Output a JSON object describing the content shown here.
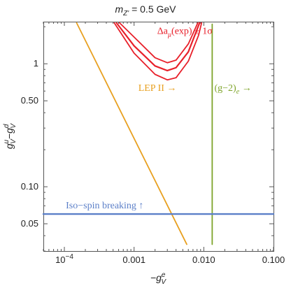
{
  "chart_data": {
    "type": "line",
    "title": "m_{Z'} = 0.5 GeV",
    "title_parts": {
      "base": "m",
      "sub": "Z'",
      "rest": " = 0.5 GeV"
    },
    "xlabel": "-g_V^e",
    "xlabel_parts": {
      "prefix": "−g",
      "sup": "e",
      "sub": "V"
    },
    "ylabel": "g_V^u - g_V^d",
    "ylabel_parts": {
      "g1": "g",
      "sup1": "u",
      "sub1": "V",
      "minus": "−g",
      "sup2": "d",
      "sub2": "V"
    },
    "xscale": "log",
    "yscale": "log",
    "xlim": [
      5e-05,
      0.1
    ],
    "ylim": [
      0.03,
      2.2
    ],
    "xticks": [
      {
        "value": 0.0001,
        "label": "10",
        "exp": "−4"
      },
      {
        "value": 0.001,
        "label": "0.001"
      },
      {
        "value": 0.01,
        "label": "0.010"
      },
      {
        "value": 0.1,
        "label": "0.100"
      }
    ],
    "yticks": [
      {
        "value": 0.05,
        "label": "0.05"
      },
      {
        "value": 0.1,
        "label": "0.10"
      },
      {
        "value": 0.5,
        "label": "0.50"
      },
      {
        "value": 1,
        "label": "1"
      }
    ],
    "series": [
      {
        "name": "LEP II",
        "color": "#e8a020",
        "points": [
          [
            0.00015,
            2.15
          ],
          [
            0.0057,
            0.034
          ]
        ]
      },
      {
        "name": "(g-2)_e",
        "color": "#7ea42a",
        "points": [
          [
            0.0132,
            2.1
          ],
          [
            0.0132,
            0.034
          ]
        ]
      },
      {
        "name": "Iso-spin breaking",
        "color": "#5b7fc8",
        "points": [
          [
            5e-05,
            0.06
          ],
          [
            0.1,
            0.06
          ]
        ]
      },
      {
        "name": "Δa_μ(exp) central",
        "color": "#e8202a",
        "points": [
          [
            0.00056,
            2.15
          ],
          [
            0.001,
            1.4
          ],
          [
            0.002,
            0.96
          ],
          [
            0.003,
            0.88
          ],
          [
            0.004,
            0.93
          ],
          [
            0.006,
            1.25
          ],
          [
            0.0087,
            2.15
          ]
        ]
      },
      {
        "name": "Δa_μ(exp) −1σ",
        "color": "#e8202a",
        "points": [
          [
            0.00052,
            2.15
          ],
          [
            0.001,
            1.22
          ],
          [
            0.002,
            0.82
          ],
          [
            0.003,
            0.74
          ],
          [
            0.004,
            0.77
          ],
          [
            0.006,
            1.05
          ],
          [
            0.0084,
            1.7
          ],
          [
            0.0093,
            2.15
          ]
        ]
      },
      {
        "name": "Δa_μ(exp) +1σ",
        "color": "#e8202a",
        "points": [
          [
            0.00062,
            2.15
          ],
          [
            0.001,
            1.65
          ],
          [
            0.002,
            1.12
          ],
          [
            0.003,
            1.02
          ],
          [
            0.004,
            1.07
          ],
          [
            0.006,
            1.45
          ],
          [
            0.0082,
            2.15
          ]
        ]
      }
    ],
    "annotations": [
      {
        "text": "LEP II →",
        "x": 0.00115,
        "y": 0.6,
        "color": "#e8a020"
      },
      {
        "text": "(g−2)",
        "sub": "e",
        "tail": " →",
        "x": 0.0142,
        "y": 0.6,
        "color": "#7ea42a"
      },
      {
        "text": "Iso−spin breaking ↑",
        "x": 0.000105,
        "y": 0.0665,
        "color": "#5b7fc8"
      },
      {
        "text": "Δa",
        "sub": "μ",
        "tail": "(exp) ± 1σ",
        "x": 0.00215,
        "y": 1.75,
        "color": "#e8202a"
      }
    ],
    "grid": false,
    "legend": "none"
  }
}
